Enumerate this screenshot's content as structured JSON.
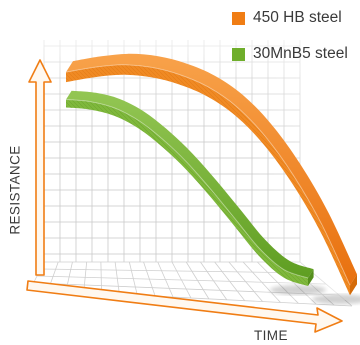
{
  "chart_data": {
    "type": "area",
    "title": "",
    "xlabel": "TIME",
    "ylabel": "RESISTANCE",
    "grid": true,
    "legend_position": "top-right",
    "x": [
      0,
      0.1,
      0.2,
      0.3,
      0.4,
      0.5,
      0.6,
      0.7,
      0.8,
      0.9,
      1.0
    ],
    "series": [
      {
        "name": "450 HB steel",
        "color": "#f07d14",
        "values": [
          0.93,
          0.95,
          0.96,
          0.95,
          0.92,
          0.87,
          0.79,
          0.67,
          0.51,
          0.31,
          0.06
        ]
      },
      {
        "name": "30MnB5 steel",
        "color": "#6fae2b",
        "values": [
          0.85,
          0.84,
          0.81,
          0.75,
          0.66,
          0.55,
          0.42,
          0.28,
          0.14,
          0.04,
          0.0
        ]
      }
    ],
    "axis_color": "#f07d14"
  }
}
